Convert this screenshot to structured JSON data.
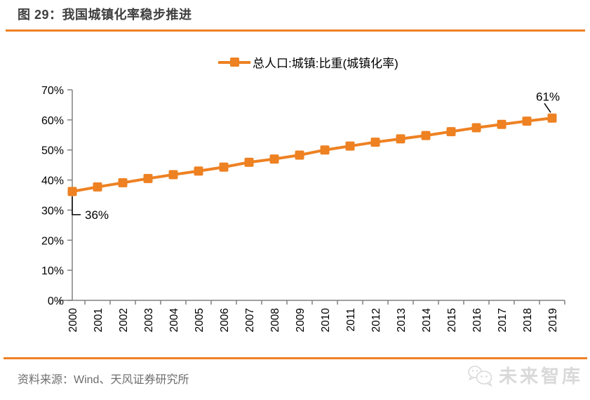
{
  "header": {
    "title": "图 29：我国城镇化率稳步推进"
  },
  "legend": {
    "label": "总人口:城镇:比重(城镇化率)"
  },
  "colors": {
    "accent_orange": "#ee8122",
    "axis_gray": "#808080",
    "tick_label_black": "#000000",
    "annotation_black": "#000000",
    "source_gray": "#6e6e6e",
    "watermark_gray": "#d9d9d9"
  },
  "chart_data": {
    "type": "line",
    "title": "",
    "xlabel": "",
    "ylabel": "",
    "x": [
      2000,
      2001,
      2002,
      2003,
      2004,
      2005,
      2006,
      2007,
      2008,
      2009,
      2010,
      2011,
      2012,
      2013,
      2014,
      2015,
      2016,
      2017,
      2018,
      2019
    ],
    "series": [
      {
        "name": "总人口:城镇:比重(城镇化率)",
        "marker": "square",
        "values": [
          36.2,
          37.7,
          39.1,
          40.5,
          41.8,
          43.0,
          44.3,
          45.9,
          47.0,
          48.3,
          50.0,
          51.3,
          52.6,
          53.7,
          54.8,
          56.1,
          57.4,
          58.5,
          59.6,
          60.6
        ]
      }
    ],
    "ylim": [
      0,
      70
    ],
    "y_tick_step": 10,
    "y_tick_labels": [
      "0%",
      "10%",
      "20%",
      "30%",
      "40%",
      "50%",
      "60%",
      "70%"
    ],
    "grid": false,
    "legend_position": "top-center",
    "annotations": [
      {
        "text": "36%",
        "year": 2000,
        "value": 36.2,
        "placement": "below-right"
      },
      {
        "text": "61%",
        "year": 2019,
        "value": 60.6,
        "placement": "above-left"
      }
    ]
  },
  "footer": {
    "source": "资料来源：Wind、天风证券研究所",
    "watermark_text": "未来智库",
    "watermark_icon": "wechat-icon"
  }
}
